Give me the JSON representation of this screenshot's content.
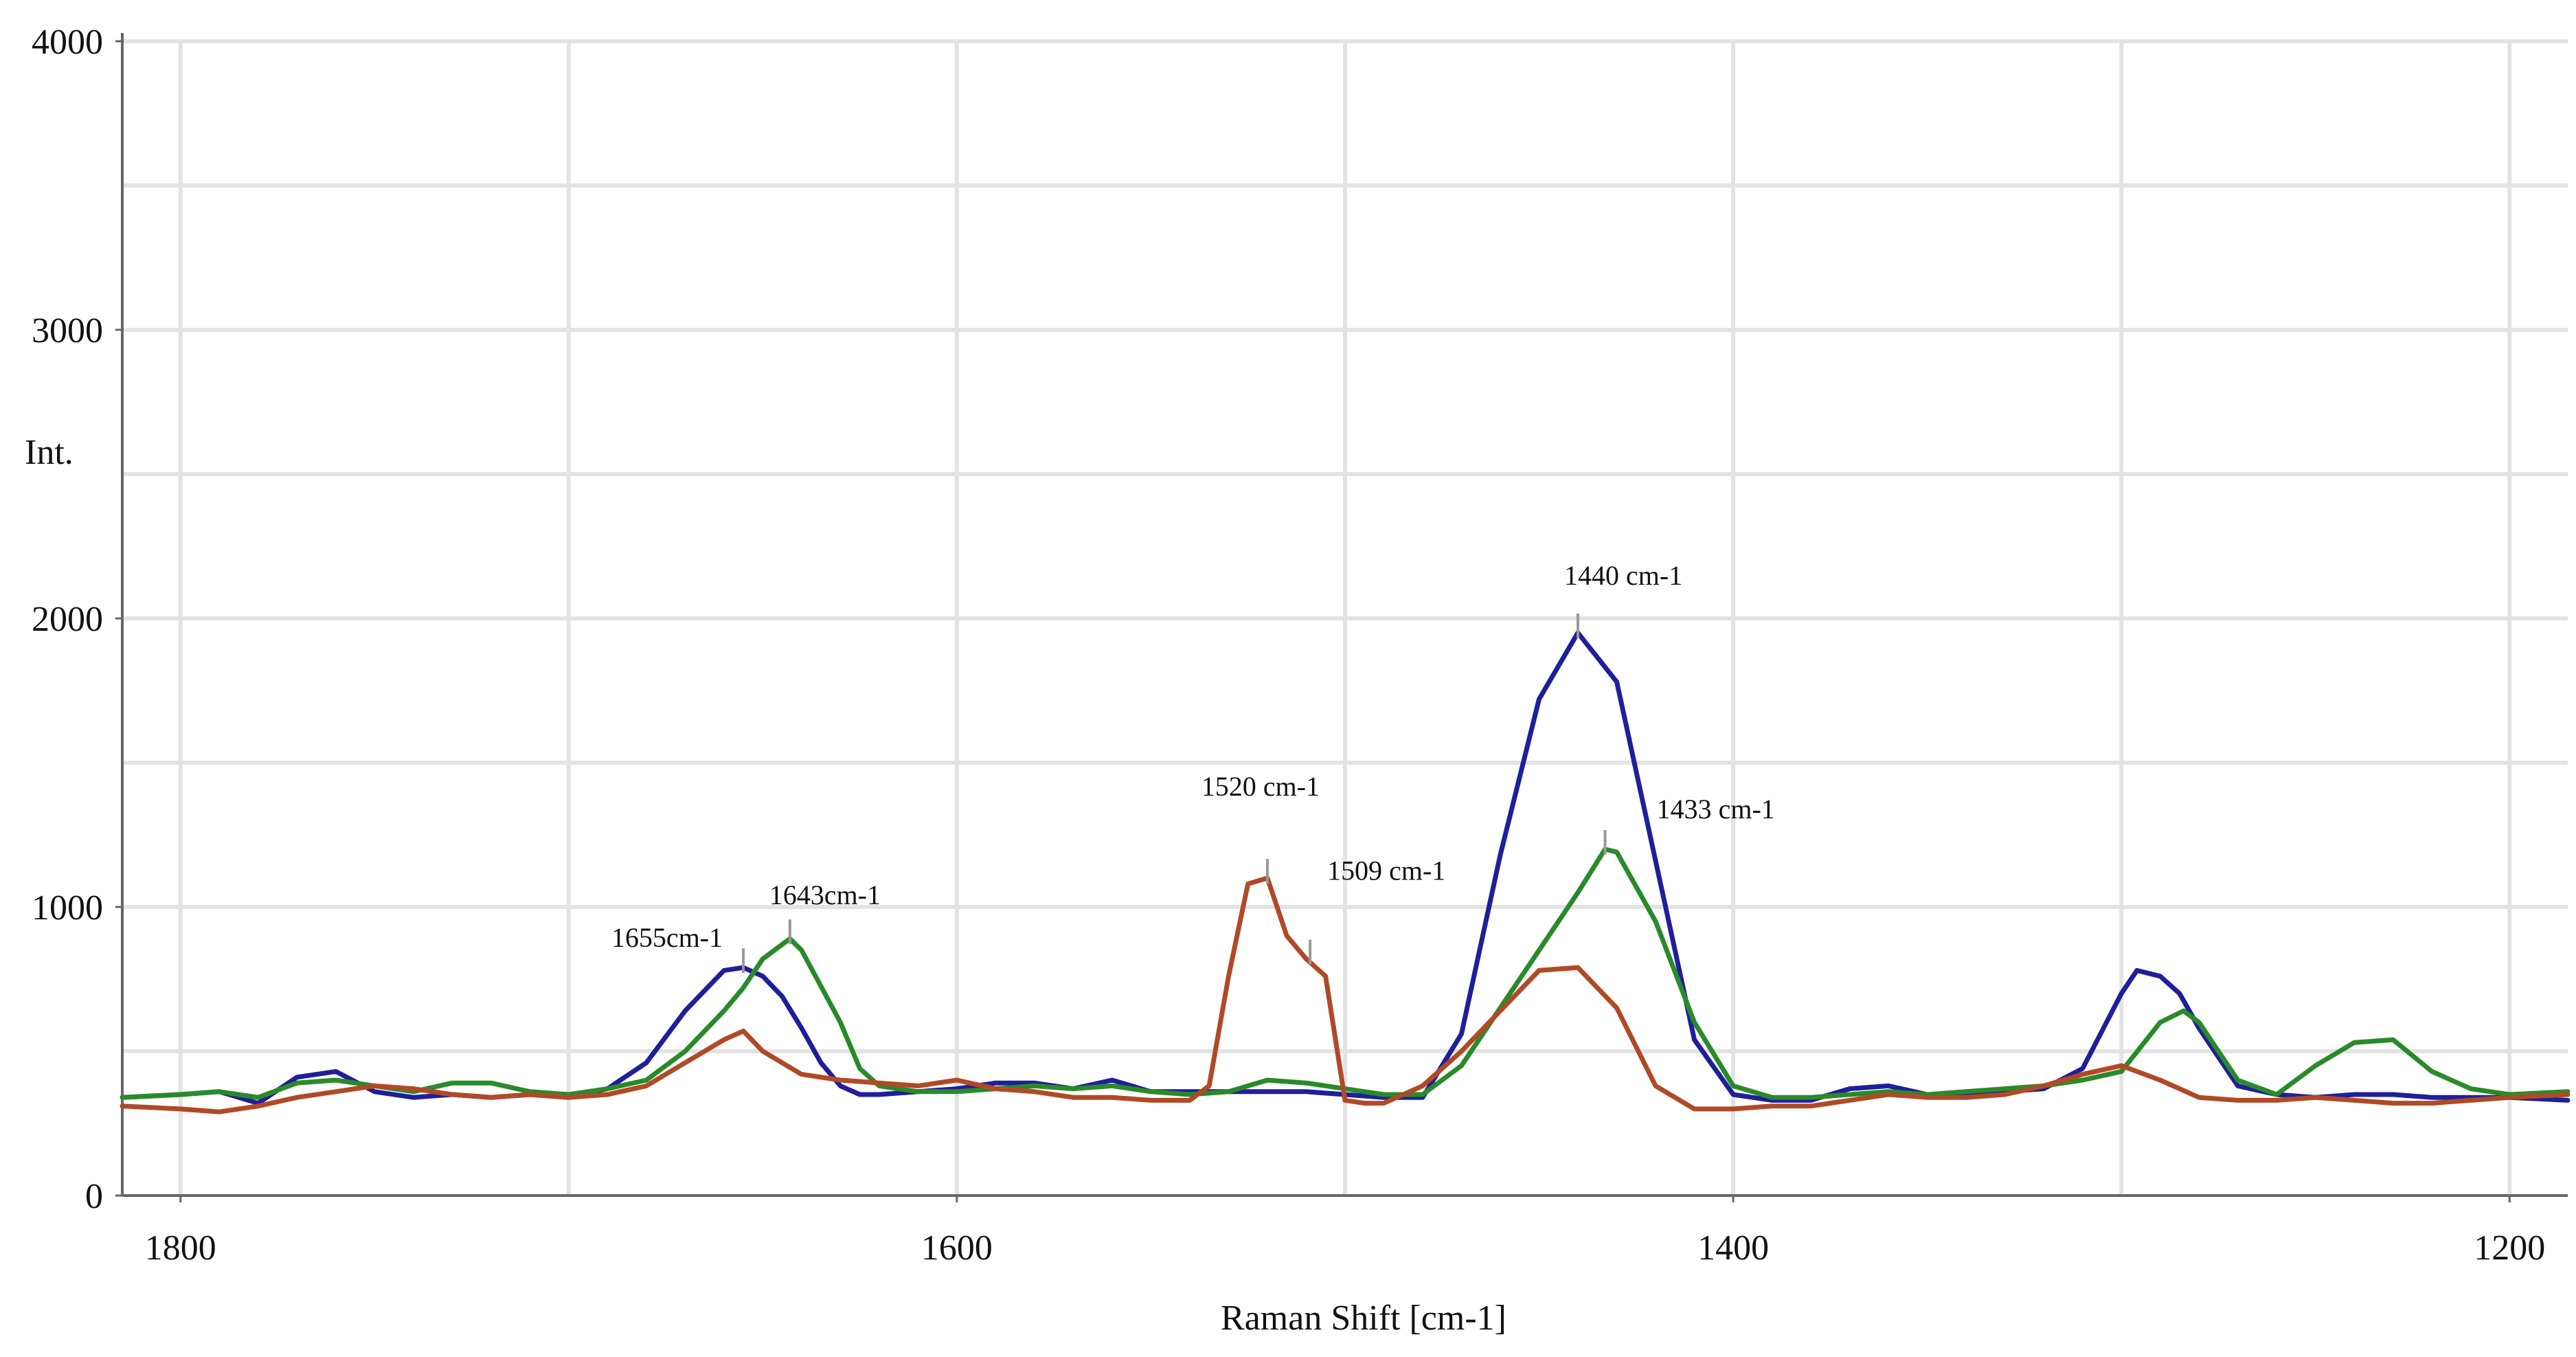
{
  "chart_data": {
    "type": "line",
    "xlabel": "Raman Shift [cm-1]",
    "ylabel": "Int.",
    "xlim": [
      1815,
      1185
    ],
    "ylim": [
      0,
      4000
    ],
    "x_reversed": true,
    "grid": true,
    "x_ticks": [
      {
        "value": 1800,
        "label": "1800"
      },
      {
        "value": 1600,
        "label": "1600"
      },
      {
        "value": 1400,
        "label": "1400"
      },
      {
        "value": 1200,
        "label": "1200"
      }
    ],
    "y_ticks": [
      {
        "value": 0,
        "label": "0"
      },
      {
        "value": 1000,
        "label": "1000"
      },
      {
        "value": 2000,
        "label": "2000"
      },
      {
        "value": 3000,
        "label": "3000"
      },
      {
        "value": 4000,
        "label": "4000"
      }
    ],
    "x_minor_grid": [
      1700,
      1500,
      1300
    ],
    "y_minor_grid": [
      500,
      1500,
      2500,
      3500
    ],
    "colors": {
      "blue": "#1f1f9a",
      "green": "#2a8a2a",
      "red": "#b04a26",
      "grid": "#e3e3e3",
      "axis": "#666666"
    },
    "series": [
      {
        "color": "#1f1f9a",
        "x": [
          1815,
          1800,
          1790,
          1780,
          1770,
          1760,
          1750,
          1740,
          1730,
          1720,
          1710,
          1700,
          1690,
          1680,
          1670,
          1660,
          1655,
          1650,
          1645,
          1640,
          1635,
          1630,
          1625,
          1620,
          1610,
          1600,
          1590,
          1580,
          1570,
          1560,
          1550,
          1540,
          1530,
          1520,
          1510,
          1500,
          1490,
          1480,
          1470,
          1460,
          1450,
          1440,
          1430,
          1420,
          1410,
          1400,
          1390,
          1380,
          1370,
          1360,
          1350,
          1340,
          1330,
          1320,
          1310,
          1300,
          1296,
          1290,
          1285,
          1280,
          1270,
          1260,
          1250,
          1240,
          1230,
          1220,
          1210,
          1200,
          1185
        ],
        "y": [
          340,
          350,
          360,
          320,
          410,
          430,
          360,
          340,
          350,
          340,
          350,
          340,
          370,
          460,
          640,
          780,
          790,
          760,
          690,
          580,
          460,
          380,
          350,
          350,
          360,
          370,
          390,
          390,
          370,
          400,
          360,
          360,
          360,
          360,
          360,
          350,
          340,
          340,
          560,
          1180,
          1720,
          1950,
          1780,
          1160,
          540,
          350,
          330,
          330,
          370,
          380,
          350,
          350,
          360,
          370,
          440,
          700,
          780,
          760,
          700,
          580,
          380,
          350,
          340,
          350,
          350,
          340,
          340,
          340,
          330
        ]
      },
      {
        "color": "#2a8a2a",
        "x": [
          1815,
          1800,
          1790,
          1780,
          1770,
          1760,
          1750,
          1740,
          1730,
          1720,
          1710,
          1700,
          1690,
          1680,
          1670,
          1660,
          1655,
          1650,
          1643,
          1640,
          1630,
          1625,
          1620,
          1610,
          1600,
          1590,
          1580,
          1570,
          1560,
          1550,
          1540,
          1530,
          1520,
          1510,
          1500,
          1490,
          1480,
          1470,
          1460,
          1450,
          1440,
          1433,
          1430,
          1420,
          1410,
          1400,
          1390,
          1380,
          1370,
          1360,
          1350,
          1340,
          1330,
          1320,
          1310,
          1300,
          1290,
          1284,
          1280,
          1270,
          1260,
          1250,
          1240,
          1230,
          1220,
          1210,
          1200,
          1185
        ],
        "y": [
          340,
          350,
          360,
          340,
          390,
          400,
          380,
          360,
          390,
          390,
          360,
          350,
          370,
          400,
          500,
          640,
          720,
          820,
          890,
          850,
          600,
          440,
          380,
          360,
          360,
          370,
          380,
          370,
          380,
          360,
          350,
          360,
          400,
          390,
          370,
          350,
          350,
          450,
          650,
          850,
          1050,
          1200,
          1190,
          950,
          600,
          380,
          340,
          340,
          350,
          360,
          350,
          360,
          370,
          380,
          400,
          430,
          600,
          640,
          600,
          400,
          350,
          450,
          530,
          540,
          430,
          370,
          350,
          360
        ]
      },
      {
        "color": "#b04a26",
        "x": [
          1815,
          1800,
          1790,
          1780,
          1770,
          1760,
          1750,
          1740,
          1730,
          1720,
          1710,
          1700,
          1690,
          1680,
          1670,
          1660,
          1655,
          1650,
          1640,
          1630,
          1620,
          1610,
          1600,
          1590,
          1580,
          1570,
          1560,
          1550,
          1540,
          1535,
          1530,
          1525,
          1520,
          1515,
          1510,
          1505,
          1500,
          1495,
          1490,
          1480,
          1470,
          1460,
          1450,
          1440,
          1430,
          1420,
          1410,
          1400,
          1390,
          1380,
          1370,
          1360,
          1350,
          1340,
          1330,
          1320,
          1310,
          1300,
          1290,
          1280,
          1270,
          1260,
          1250,
          1240,
          1230,
          1220,
          1210,
          1200,
          1185
        ],
        "y": [
          310,
          300,
          290,
          310,
          340,
          360,
          380,
          370,
          350,
          340,
          350,
          340,
          350,
          380,
          460,
          540,
          570,
          500,
          420,
          400,
          390,
          380,
          400,
          370,
          360,
          340,
          340,
          330,
          330,
          380,
          760,
          1080,
          1100,
          900,
          820,
          760,
          330,
          320,
          320,
          380,
          500,
          640,
          780,
          790,
          650,
          380,
          300,
          300,
          310,
          310,
          330,
          350,
          340,
          340,
          350,
          380,
          420,
          450,
          400,
          340,
          330,
          330,
          340,
          330,
          320,
          320,
          330,
          340,
          350
        ]
      }
    ],
    "annotations": [
      {
        "text": "1655cm-1",
        "x": 1655,
        "y": 790
      },
      {
        "text": "1643cm-1",
        "x": 1643,
        "y": 890
      },
      {
        "text": "1520 cm-1",
        "x": 1520,
        "y": 1100
      },
      {
        "text": "1509 cm-1",
        "x": 1509,
        "y": 820
      },
      {
        "text": "1440 cm-1",
        "x": 1440,
        "y": 1950
      },
      {
        "text": "1433 cm-1",
        "x": 1433,
        "y": 1200
      }
    ]
  }
}
